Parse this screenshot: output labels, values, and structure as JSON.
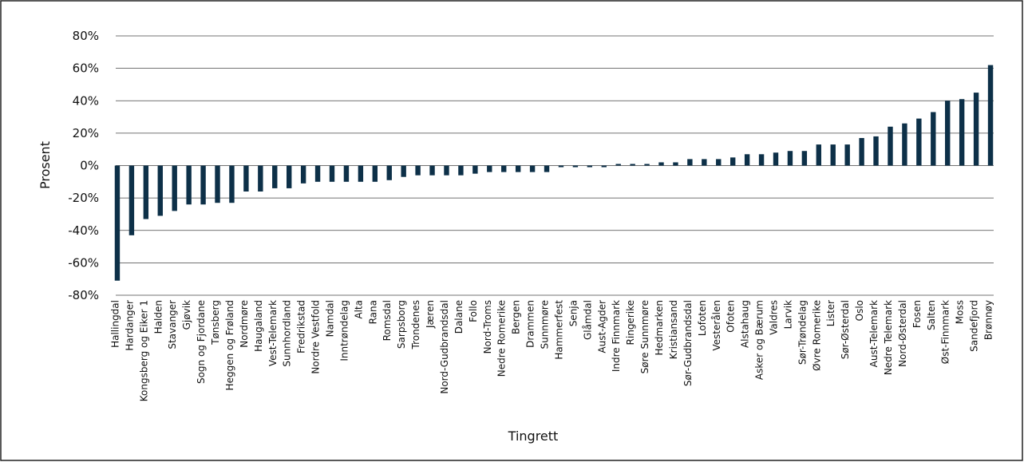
{
  "chart_data": {
    "type": "bar",
    "y_label": "Prosent",
    "x_label": "Tingrett",
    "categories": [
      "Hallingdal",
      "Hardanger",
      "Kongsberg og Eiker 1",
      "Halden",
      "Stavanger",
      "Gjøvik",
      "Sogn og Fjordane",
      "Tønsberg",
      "Heggen og Frøland",
      "Nordmøre",
      "Haugaland",
      "Vest-Telemark",
      "Sunnhordland",
      "Fredrikstad",
      "Nordre Vestfold",
      "Namdal",
      "Inntrøndelag",
      "Alta",
      "Rana",
      "Romsdal",
      "Sarpsborg",
      "Trondenes",
      "Jæren",
      "Nord-Gudbrandsdal",
      "Dalane",
      "Follo",
      "Nord-Troms",
      "Nedre Romerike",
      "Bergen",
      "Drammen",
      "Sunnmøre",
      "Hammerfest",
      "Senja",
      "Glåmdal",
      "Aust-Agder",
      "Indre Finnmark",
      "Ringerike",
      "Søre Sunnmøre",
      "Hedmarken",
      "Kristiansand",
      "Sør-Gudbrandsdal",
      "Lofoten",
      "Vesterålen",
      "Ofoten",
      "Alstahaug",
      "Asker og Bærum",
      "Valdres",
      "Larvik",
      "Sør-Trøndelag",
      "Øvre Romerike",
      "Lister",
      "Sør-Østerdal",
      "Oslo",
      "Aust-Telemark",
      "Nedre Telemark",
      "Nord-Østerdal",
      "Fosen",
      "Salten",
      "Øst-Finnmark",
      "Moss",
      "Sandefjord",
      "Brønnøy"
    ],
    "values": [
      -71,
      -43,
      -33,
      -31,
      -28,
      -24,
      -24,
      -23,
      -23,
      -16,
      -16,
      -14,
      -14,
      -11,
      -10,
      -10,
      -10,
      -10,
      -10,
      -9,
      -7,
      -6,
      -6,
      -6,
      -6,
      -5,
      -4,
      -4,
      -4,
      -4,
      -4,
      -1,
      -1,
      -1,
      -1,
      1,
      1,
      1,
      2,
      2,
      4,
      4,
      4,
      5,
      7,
      7,
      8,
      9,
      9,
      13,
      13,
      13,
      17,
      18,
      24,
      26,
      29,
      33,
      40,
      41,
      45,
      62
    ],
    "color": "#0d3048",
    "ylim": [
      -80,
      80
    ],
    "yticks": [
      {
        "value": -80,
        "label": "-80%"
      },
      {
        "value": -60,
        "label": "-60%"
      },
      {
        "value": -40,
        "label": "-40%"
      },
      {
        "value": -20,
        "label": "-20%"
      },
      {
        "value": 0,
        "label": "0%"
      },
      {
        "value": 20,
        "label": "20%"
      },
      {
        "value": 40,
        "label": "40%"
      },
      {
        "value": 60,
        "label": "60%"
      },
      {
        "value": 80,
        "label": "80%"
      }
    ],
    "grid": true
  }
}
